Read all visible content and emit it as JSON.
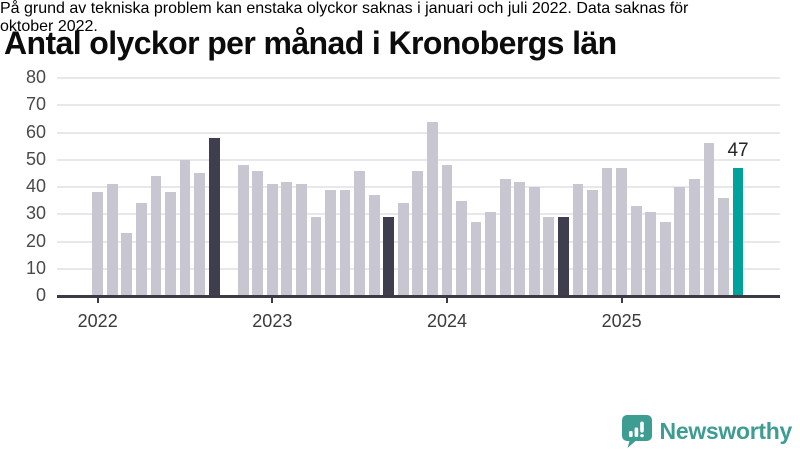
{
  "title": "Antal olyckor per månad i Kronobergs län",
  "footnote": {
    "line1": "På grund av tekniska problem kan enstaka olyckor saknas i januari och juli 2022. Data saknas för",
    "line2": "oktober 2022."
  },
  "logo": {
    "text": "Newsworthy",
    "icon": "newsworthy-speech-bubble-chart-icon"
  },
  "colors": {
    "bar_default": "#c8c6d1",
    "bar_dark": "#3f3e4e",
    "bar_accent": "#00a39b",
    "axis": "#3c3b45",
    "grid": "#e8e7eb",
    "logo": "#3e9d93"
  },
  "chart_data": {
    "type": "bar",
    "title": "Antal olyckor per månad i Kronobergs län",
    "xlabel": "",
    "ylabel": "",
    "ylim": [
      0,
      80
    ],
    "yticks": [
      0,
      10,
      20,
      30,
      40,
      50,
      60,
      70,
      80
    ],
    "grid": "horizontal",
    "legend": "none",
    "x_unit": "month",
    "year_ticks": [
      {
        "label": "2022",
        "index": 0
      },
      {
        "label": "2023",
        "index": 12
      },
      {
        "label": "2024",
        "index": 24
      },
      {
        "label": "2025",
        "index": 36
      }
    ],
    "annotation": {
      "text": "47",
      "index": 44
    },
    "bars": [
      {
        "month": "2022-01",
        "value": 38,
        "role": "default"
      },
      {
        "month": "2022-02",
        "value": 41,
        "role": "default"
      },
      {
        "month": "2022-03",
        "value": 23,
        "role": "default"
      },
      {
        "month": "2022-04",
        "value": 34,
        "role": "default"
      },
      {
        "month": "2022-05",
        "value": 44,
        "role": "default"
      },
      {
        "month": "2022-06",
        "value": 38,
        "role": "default"
      },
      {
        "month": "2022-07",
        "value": 50,
        "role": "default"
      },
      {
        "month": "2022-08",
        "value": 45,
        "role": "default"
      },
      {
        "month": "2022-09",
        "value": 58,
        "role": "dark"
      },
      {
        "month": "2022-10",
        "value": null,
        "role": "missing"
      },
      {
        "month": "2022-11",
        "value": 48,
        "role": "default"
      },
      {
        "month": "2022-12",
        "value": 46,
        "role": "default"
      },
      {
        "month": "2023-01",
        "value": 41,
        "role": "default"
      },
      {
        "month": "2023-02",
        "value": 42,
        "role": "default"
      },
      {
        "month": "2023-03",
        "value": 41,
        "role": "default"
      },
      {
        "month": "2023-04",
        "value": 29,
        "role": "default"
      },
      {
        "month": "2023-05",
        "value": 39,
        "role": "default"
      },
      {
        "month": "2023-06",
        "value": 39,
        "role": "default"
      },
      {
        "month": "2023-07",
        "value": 46,
        "role": "default"
      },
      {
        "month": "2023-08",
        "value": 37,
        "role": "default"
      },
      {
        "month": "2023-09",
        "value": 29,
        "role": "dark"
      },
      {
        "month": "2023-10",
        "value": 34,
        "role": "default"
      },
      {
        "month": "2023-11",
        "value": 46,
        "role": "default"
      },
      {
        "month": "2023-12",
        "value": 64,
        "role": "default"
      },
      {
        "month": "2024-01",
        "value": 48,
        "role": "default"
      },
      {
        "month": "2024-02",
        "value": 35,
        "role": "default"
      },
      {
        "month": "2024-03",
        "value": 27,
        "role": "default"
      },
      {
        "month": "2024-04",
        "value": 31,
        "role": "default"
      },
      {
        "month": "2024-05",
        "value": 43,
        "role": "default"
      },
      {
        "month": "2024-06",
        "value": 42,
        "role": "default"
      },
      {
        "month": "2024-07",
        "value": 40,
        "role": "default"
      },
      {
        "month": "2024-08",
        "value": 29,
        "role": "default"
      },
      {
        "month": "2024-09",
        "value": 29,
        "role": "dark"
      },
      {
        "month": "2024-10",
        "value": 41,
        "role": "default"
      },
      {
        "month": "2024-11",
        "value": 39,
        "role": "default"
      },
      {
        "month": "2024-12",
        "value": 47,
        "role": "default"
      },
      {
        "month": "2025-01",
        "value": 47,
        "role": "default"
      },
      {
        "month": "2025-02",
        "value": 33,
        "role": "default"
      },
      {
        "month": "2025-03",
        "value": 31,
        "role": "default"
      },
      {
        "month": "2025-04",
        "value": 27,
        "role": "default"
      },
      {
        "month": "2025-05",
        "value": 40,
        "role": "default"
      },
      {
        "month": "2025-06",
        "value": 43,
        "role": "default"
      },
      {
        "month": "2025-07",
        "value": 56,
        "role": "default"
      },
      {
        "month": "2025-08",
        "value": 36,
        "role": "default"
      },
      {
        "month": "2025-09",
        "value": 47,
        "role": "accent"
      }
    ]
  }
}
